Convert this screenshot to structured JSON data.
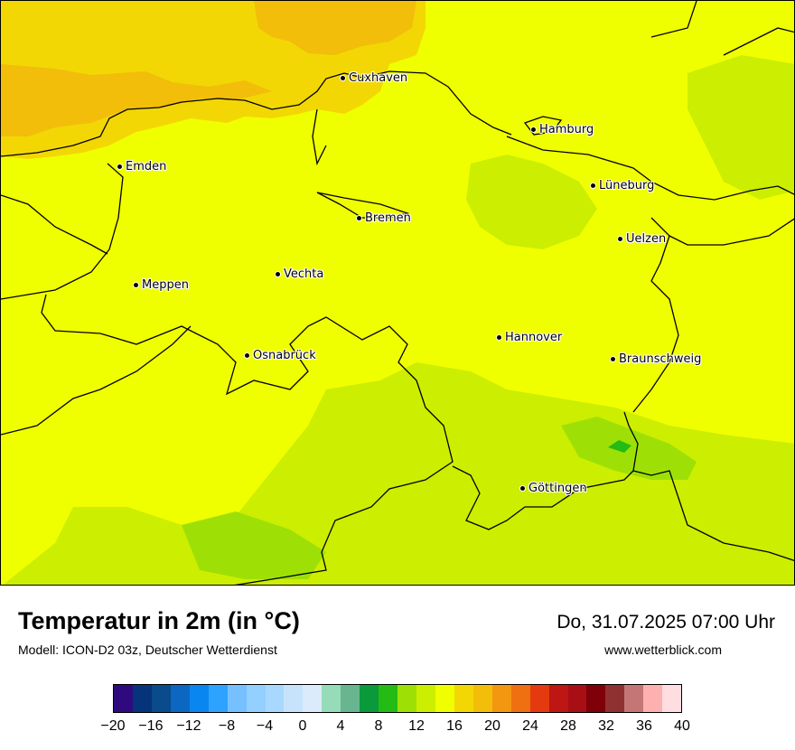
{
  "map": {
    "cities": [
      {
        "id": "cuxhaven",
        "name": "Cuxhaven"
      },
      {
        "id": "hamburg",
        "name": "Hamburg"
      },
      {
        "id": "emden",
        "name": "Emden"
      },
      {
        "id": "lueneburg",
        "name": "Lüneburg"
      },
      {
        "id": "bremen",
        "name": "Bremen"
      },
      {
        "id": "uelzen",
        "name": "Uelzen"
      },
      {
        "id": "vechta",
        "name": "Vechta"
      },
      {
        "id": "meppen",
        "name": "Meppen"
      },
      {
        "id": "hannover",
        "name": "Hannover"
      },
      {
        "id": "osnabrueck",
        "name": "Osnabrück"
      },
      {
        "id": "braunschweig",
        "name": "Braunschweig"
      },
      {
        "id": "goettingen",
        "name": "Göttingen"
      }
    ]
  },
  "footer": {
    "title": "Temperatur in 2m (in °C)",
    "model": "Modell: ICON-D2 03z, Deutscher Wetterdienst",
    "datetime": "Do, 31.07.2025 07:00 Uhr",
    "website": "www.wetterblick.com"
  },
  "legend": {
    "colors": [
      "#2e0a7e",
      "#06347a",
      "#0a4b8c",
      "#0b67bf",
      "#0a86f0",
      "#2ea2ff",
      "#76c0ff",
      "#93cfff",
      "#a9d8fe",
      "#c6e3fb",
      "#dcebfb",
      "#96dcb8",
      "#69b58f",
      "#0a9a3c",
      "#23bb14",
      "#9ee006",
      "#ccee00",
      "#f0ff00",
      "#f2d705",
      "#f2be0a",
      "#f39610",
      "#ee7010",
      "#e53a0f",
      "#be1612",
      "#a80f15",
      "#7f0009",
      "#903131",
      "#c47676",
      "#fdb0b0",
      "#ffdde0"
    ],
    "ticks": [
      "−20",
      "−16",
      "−12",
      "−8",
      "−4",
      "0",
      "4",
      "8",
      "12",
      "16",
      "20",
      "24",
      "28",
      "32",
      "36",
      "40"
    ]
  }
}
